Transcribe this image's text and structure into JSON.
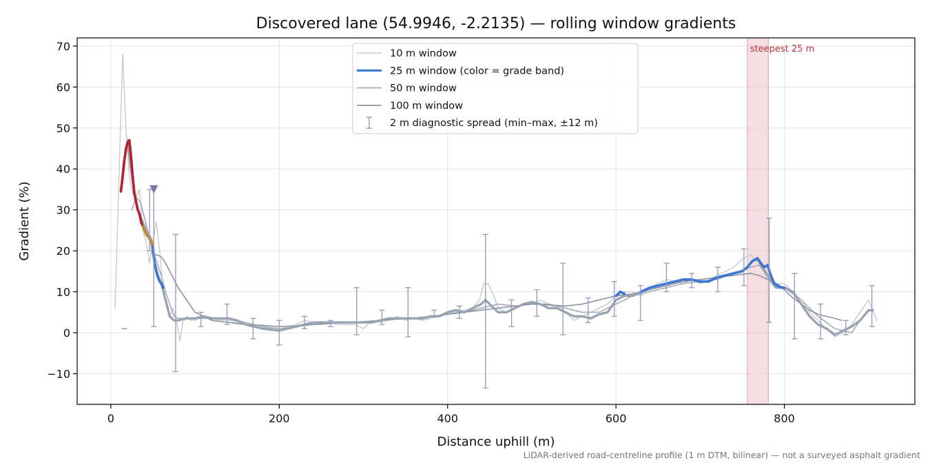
{
  "chart_data": {
    "type": "line",
    "title": "Discovered lane (54.9946, -2.2135) — rolling window gradients",
    "xlabel": "Distance uphill (m)",
    "ylabel": "Gradient (%)",
    "xlim": [
      -40,
      955
    ],
    "ylim": [
      -17.5,
      72
    ],
    "xticks": [
      0,
      200,
      400,
      600,
      800
    ],
    "yticks": [
      -10,
      0,
      10,
      20,
      30,
      40,
      50,
      60,
      70
    ],
    "xtick_labels": [
      "0",
      "200",
      "400",
      "600",
      "800"
    ],
    "ytick_labels": [
      "−10",
      "0",
      "10",
      "20",
      "30",
      "40",
      "50",
      "60",
      "70"
    ],
    "grid": true,
    "legend_position": "top-center",
    "footnote": "LiDAR-derived road-centreline profile (1 m DTM, bilinear) — not a surveyed asphalt gradient",
    "steepest_band": {
      "label": "steepest 25 m",
      "x_start": 756,
      "x_end": 781,
      "color": "#e9b6bc"
    },
    "marker": {
      "x": 51,
      "y": 35,
      "color": "#7e74a8"
    },
    "legend": [
      {
        "label": "10 m window",
        "color": "#c3cad3",
        "kind": "line"
      },
      {
        "label": "25 m window (color = grade band)",
        "color": "#3a78d4",
        "kind": "line-thick"
      },
      {
        "label": "50 m window",
        "color": "#a4acb8",
        "kind": "line"
      },
      {
        "label": "100 m window",
        "color": "#868c99",
        "kind": "line"
      },
      {
        "label": "2 m diagnostic spread (min–max, ±12 m)",
        "color": "#9a93bc",
        "kind": "errorbar"
      }
    ],
    "series": [
      {
        "name": "10 m window",
        "color": "#c3cad3",
        "x": [
          5,
          10,
          14,
          18,
          22,
          26,
          30,
          34,
          38,
          42,
          46,
          50,
          54,
          58,
          62,
          66,
          70,
          74,
          78,
          82,
          86,
          90,
          95,
          100,
          110,
          120,
          130,
          140,
          150,
          160,
          170,
          180,
          190,
          200,
          210,
          220,
          230,
          240,
          250,
          260,
          270,
          280,
          290,
          300,
          310,
          320,
          330,
          340,
          350,
          360,
          370,
          380,
          390,
          400,
          410,
          420,
          430,
          438,
          443,
          448,
          455,
          460,
          470,
          480,
          490,
          500,
          510,
          520,
          530,
          540,
          550,
          560,
          570,
          580,
          590,
          600,
          610,
          620,
          630,
          640,
          650,
          660,
          670,
          680,
          690,
          700,
          710,
          720,
          730,
          740,
          750,
          760,
          770,
          780,
          790,
          800,
          810,
          820,
          830,
          840,
          850,
          860,
          870,
          880,
          890,
          900,
          910
        ],
        "y": [
          6,
          40,
          68,
          50,
          38,
          34,
          33,
          35,
          25,
          22,
          17,
          22,
          27,
          20,
          10,
          8,
          4,
          6,
          3,
          -2,
          3,
          4,
          3,
          3,
          4,
          3.5,
          3,
          3,
          2.5,
          2,
          1.5,
          1,
          0.5,
          0.5,
          1,
          2,
          3,
          2.5,
          2,
          2.5,
          2,
          2,
          2,
          1,
          3,
          2.5,
          3,
          4,
          3,
          3.5,
          3,
          3.5,
          4,
          4.5,
          5,
          5.5,
          6,
          8,
          12,
          12,
          9,
          6,
          5,
          6,
          7,
          7,
          8,
          7,
          6,
          5,
          3,
          4,
          5,
          6,
          7,
          9,
          10,
          10,
          9,
          11,
          12,
          13,
          12.5,
          12,
          13,
          12,
          13,
          14,
          15,
          16,
          18,
          19,
          17,
          13,
          12,
          12,
          10,
          8,
          5,
          3,
          1,
          -1,
          0,
          2,
          5,
          8,
          3
        ]
      },
      {
        "name": "25 m window (color = grade band)",
        "color": "#98a4b2",
        "x": [
          12,
          16,
          20,
          24,
          28,
          32,
          36,
          40,
          44,
          48,
          52,
          56,
          60,
          65,
          70,
          75,
          80,
          90,
          100,
          110,
          120,
          130,
          140,
          150,
          160,
          170,
          180,
          190,
          200,
          210,
          220,
          230,
          240,
          250,
          260,
          270,
          280,
          290,
          300,
          310,
          320,
          330,
          340,
          350,
          360,
          370,
          380,
          390,
          400,
          410,
          420,
          430,
          440,
          445,
          450,
          460,
          470,
          480,
          490,
          500,
          510,
          520,
          530,
          540,
          550,
          560,
          570,
          580,
          590,
          600,
          610,
          620,
          630,
          640,
          650,
          660,
          670,
          680,
          690,
          700,
          710,
          720,
          730,
          740,
          750,
          756,
          762,
          768,
          774,
          780,
          786,
          790,
          795,
          800,
          810,
          820,
          830,
          840,
          850,
          860,
          870,
          880,
          890,
          900,
          905
        ],
        "y": [
          34.5,
          42,
          47,
          40,
          34,
          30,
          28,
          26,
          23.5,
          22,
          17,
          14,
          12,
          8,
          4,
          3,
          3,
          3.5,
          3.5,
          4,
          3.5,
          3.5,
          3.5,
          3,
          2,
          1.5,
          1,
          0.8,
          0.5,
          1,
          1.5,
          2,
          2.5,
          2.5,
          2.5,
          2.5,
          2.5,
          2.5,
          2.5,
          2.5,
          3,
          3.5,
          3.5,
          3.5,
          3.5,
          3.5,
          4,
          4,
          5,
          5.5,
          5,
          6,
          7,
          8,
          7,
          5,
          5,
          6,
          7,
          7.5,
          7,
          6,
          6,
          5,
          4,
          4,
          3.5,
          4.5,
          5,
          8,
          9,
          9,
          10,
          11,
          11.5,
          12,
          12.5,
          13,
          13,
          12.5,
          12.5,
          13.5,
          14,
          14.5,
          15,
          16,
          17.5,
          18,
          16,
          14,
          12,
          11,
          11,
          11,
          10,
          7,
          4,
          2,
          1,
          -0.5,
          0.5,
          1.5,
          3,
          5.5,
          5.5
        ]
      },
      {
        "name": "50 m window",
        "color": "#a4acb8",
        "x": [
          25,
          30,
          35,
          40,
          45,
          50,
          55,
          60,
          65,
          70,
          75,
          80,
          90,
          100,
          120,
          140,
          160,
          180,
          200,
          220,
          240,
          260,
          280,
          300,
          320,
          340,
          360,
          380,
          400,
          420,
          440,
          460,
          480,
          500,
          520,
          540,
          560,
          580,
          600,
          620,
          640,
          660,
          680,
          700,
          720,
          740,
          760,
          770,
          780,
          790,
          800,
          820,
          840,
          860,
          880,
          890,
          900
        ],
        "y": [
          30,
          33,
          32,
          28,
          24,
          20,
          17,
          14,
          10,
          7,
          4,
          3.5,
          3.5,
          3.5,
          3.5,
          3.5,
          2.5,
          1.5,
          1,
          1.5,
          2,
          2.5,
          2.5,
          2.5,
          3,
          3.5,
          3.5,
          4,
          4.5,
          5,
          6,
          7,
          6.5,
          7,
          7,
          6,
          5,
          5,
          7,
          9,
          10,
          11,
          12,
          12.5,
          13,
          14.5,
          16,
          16.5,
          14,
          12,
          11,
          8,
          4,
          1,
          0,
          3,
          5.5
        ]
      },
      {
        "name": "100 m window",
        "color": "#868c99",
        "x": [
          50,
          55,
          60,
          65,
          70,
          75,
          80,
          85,
          90,
          95,
          100,
          110,
          120,
          140,
          160,
          180,
          200,
          220,
          240,
          260,
          280,
          300,
          320,
          340,
          360,
          380,
          400,
          420,
          440,
          460,
          480,
          500,
          520,
          540,
          560,
          580,
          600,
          620,
          640,
          660,
          680,
          700,
          720,
          740,
          760,
          770,
          780,
          790,
          800,
          810,
          820,
          830,
          840,
          850,
          860,
          868
        ],
        "y": [
          19,
          19,
          18.5,
          17,
          15,
          13,
          11,
          9.5,
          8,
          6.5,
          5,
          4,
          3,
          2.5,
          2,
          1.8,
          1.5,
          1.7,
          2,
          2.2,
          2.5,
          2.7,
          3,
          3.3,
          3.6,
          4,
          4.5,
          5,
          5.5,
          6,
          6.5,
          7,
          6.8,
          6.5,
          7,
          8,
          9,
          9.5,
          10.5,
          11.5,
          12.5,
          13,
          13.5,
          14,
          14.5,
          14,
          13,
          12,
          10.5,
          8.5,
          7,
          5.5,
          4.5,
          4,
          3.5,
          3
        ]
      }
    ],
    "grade_band_segments": [
      {
        "color": "#b5202e",
        "x": [
          12,
          14,
          16,
          18,
          20,
          22,
          24,
          26,
          28,
          30,
          32,
          34,
          36,
          38
        ],
        "y": [
          34.5,
          38,
          42,
          45,
          46.5,
          47,
          43,
          38,
          34,
          32,
          30,
          29,
          27,
          26
        ]
      },
      {
        "color": "#c88828",
        "x": [
          38,
          40,
          42,
          44,
          46,
          48,
          50
        ],
        "y": [
          26,
          25,
          24,
          23.5,
          23.5,
          22.5,
          21
        ]
      },
      {
        "color": "#3a78d4",
        "x": [
          50,
          52,
          54,
          56,
          58,
          60,
          62
        ],
        "y": [
          21,
          17,
          15,
          13.5,
          12.5,
          12,
          11
        ]
      },
      {
        "color": "#3a78d4",
        "x": [
          600,
          605,
          610
        ],
        "y": [
          9,
          10,
          9.5
        ]
      },
      {
        "color": "#3a78d4",
        "x": [
          630,
          640,
          650,
          660,
          670,
          680,
          690,
          700,
          710,
          720,
          730,
          740,
          750,
          756,
          762,
          768,
          772,
          776,
          780,
          784,
          788,
          792,
          796,
          800
        ],
        "y": [
          10,
          11,
          11.5,
          12,
          12.5,
          13,
          13,
          12.5,
          12.5,
          13.5,
          14,
          14.5,
          15,
          16,
          17.5,
          18.2,
          17,
          16,
          16.5,
          14,
          12,
          11.5,
          11,
          11
        ]
      }
    ],
    "errorbars": {
      "color": "#9a93bc",
      "x": [
        16,
        46,
        51,
        77,
        107,
        138,
        169,
        200,
        230,
        261,
        292,
        322,
        353,
        384,
        414,
        445,
        476,
        506,
        537,
        567,
        598,
        629,
        660,
        690,
        721,
        752,
        782,
        812,
        843,
        873,
        904
      ],
      "low": [
        1,
        20,
        1.5,
        -9.5,
        1.5,
        2,
        -1.5,
        -3,
        1,
        1.5,
        -0.5,
        2,
        -1,
        4,
        3.5,
        -13.5,
        1.5,
        4,
        -0.5,
        2.5,
        4,
        3,
        10,
        11,
        10,
        11.5,
        2.5,
        -1.5,
        -1.5,
        -0.5,
        1.5
      ],
      "high": [
        1,
        35,
        35,
        24,
        5,
        7,
        3.5,
        3,
        4,
        3,
        11,
        5.5,
        11,
        5.5,
        6.5,
        24,
        8,
        10.5,
        17,
        8.5,
        12.5,
        11.5,
        17,
        14.5,
        16,
        20.5,
        28,
        14.5,
        7,
        3,
        11.5
      ]
    }
  }
}
